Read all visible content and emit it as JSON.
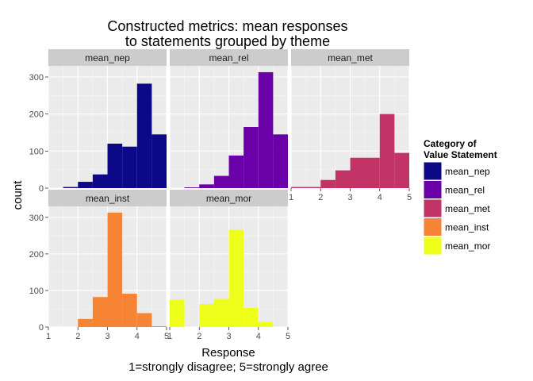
{
  "chart_data": {
    "type": "bar",
    "subtype": "faceted-histogram",
    "title_lines": [
      "Constructed metrics: mean responses",
      "to statements grouped by theme"
    ],
    "xlabel": "Response",
    "xlabel_sub": "1=strongly disagree; 5=strongly agree",
    "ylabel": "count",
    "xlim": [
      1,
      5
    ],
    "ylim": [
      0,
      330
    ],
    "x_ticks": [
      "1",
      "2",
      "3",
      "4",
      "5"
    ],
    "y_ticks": [
      "0",
      "100",
      "200",
      "300"
    ],
    "grid": true,
    "legend": {
      "title_lines": [
        "Category of",
        "Value Statement"
      ],
      "placement": "right",
      "items": [
        "mean_nep",
        "mean_rel",
        "mean_met",
        "mean_inst",
        "mean_mor"
      ]
    },
    "series": [
      {
        "name": "mean_nep",
        "color": "#0d0887",
        "bins": [
          {
            "x0": 1.5,
            "x1": 2.0,
            "count": 3
          },
          {
            "x0": 2.0,
            "x1": 2.5,
            "count": 17
          },
          {
            "x0": 2.5,
            "x1": 3.0,
            "count": 37
          },
          {
            "x0": 3.0,
            "x1": 3.5,
            "count": 120
          },
          {
            "x0": 3.5,
            "x1": 4.0,
            "count": 112
          },
          {
            "x0": 4.0,
            "x1": 4.5,
            "count": 282
          },
          {
            "x0": 4.5,
            "x1": 5.0,
            "count": 145
          }
        ]
      },
      {
        "name": "mean_rel",
        "color": "#6a00a8",
        "bins": [
          {
            "x0": 1.5,
            "x1": 2.0,
            "count": 2
          },
          {
            "x0": 2.0,
            "x1": 2.5,
            "count": 10
          },
          {
            "x0": 2.5,
            "x1": 3.0,
            "count": 33
          },
          {
            "x0": 3.0,
            "x1": 3.5,
            "count": 88
          },
          {
            "x0": 3.5,
            "x1": 4.0,
            "count": 165
          },
          {
            "x0": 4.0,
            "x1": 4.5,
            "count": 313
          },
          {
            "x0": 4.5,
            "x1": 5.0,
            "count": 145
          }
        ]
      },
      {
        "name": "mean_met",
        "color": "#c23466",
        "bins": [
          {
            "x0": 1.0,
            "x1": 2.0,
            "count": 3
          },
          {
            "x0": 2.0,
            "x1": 2.5,
            "count": 22
          },
          {
            "x0": 2.5,
            "x1": 3.0,
            "count": 48
          },
          {
            "x0": 3.0,
            "x1": 4.0,
            "count": 82
          },
          {
            "x0": 4.0,
            "x1": 4.5,
            "count": 200
          },
          {
            "x0": 4.5,
            "x1": 5.0,
            "count": 95
          }
        ]
      },
      {
        "name": "mean_inst",
        "color": "#f78435",
        "bins": [
          {
            "x0": 2.0,
            "x1": 2.5,
            "count": 22
          },
          {
            "x0": 2.5,
            "x1": 3.0,
            "count": 82
          },
          {
            "x0": 3.0,
            "x1": 3.5,
            "count": 313
          },
          {
            "x0": 3.5,
            "x1": 4.0,
            "count": 91
          },
          {
            "x0": 4.0,
            "x1": 4.5,
            "count": 38
          },
          {
            "x0": 4.5,
            "x1": 5.0,
            "count": 2
          }
        ]
      },
      {
        "name": "mean_mor",
        "color": "#eeff1b",
        "bins": [
          {
            "x0": 1.0,
            "x1": 1.5,
            "count": 75
          },
          {
            "x0": 2.0,
            "x1": 2.5,
            "count": 63
          },
          {
            "x0": 2.5,
            "x1": 3.0,
            "count": 77
          },
          {
            "x0": 3.0,
            "x1": 3.5,
            "count": 266
          },
          {
            "x0": 3.5,
            "x1": 4.0,
            "count": 52
          },
          {
            "x0": 4.0,
            "x1": 4.5,
            "count": 14
          }
        ]
      }
    ]
  }
}
